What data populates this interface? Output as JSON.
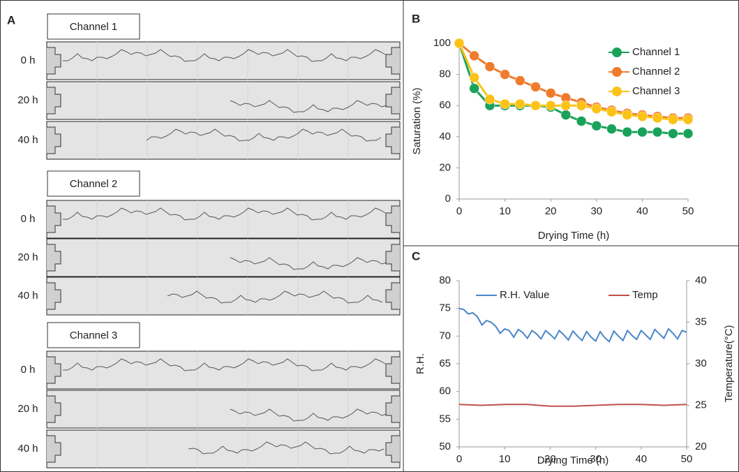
{
  "panel_a": {
    "label": "A",
    "channels": [
      {
        "title": "Channel 1",
        "rows": [
          "0 h",
          "20 h",
          "40 h"
        ]
      },
      {
        "title": "Channel 2",
        "rows": [
          "0 h",
          "20 h",
          "40 h"
        ]
      },
      {
        "title": "Channel 3",
        "rows": [
          "0 h",
          "20 h",
          "40 h"
        ]
      }
    ]
  },
  "chart_data": [
    {
      "type": "line",
      "panel_label": "B",
      "markers": true,
      "x_label": "Drying Time (h)",
      "y_label": "Saturation (%)",
      "x": [
        0,
        3.3,
        6.7,
        10,
        13.3,
        16.7,
        20,
        23.3,
        26.7,
        30,
        33.3,
        36.7,
        40,
        43.3,
        46.7,
        50
      ],
      "series": [
        {
          "name": "Channel 1",
          "color": "#1aa15a",
          "values": [
            100,
            71,
            60,
            60,
            60,
            60,
            59,
            54,
            50,
            47,
            45,
            43,
            43,
            43,
            42,
            42
          ]
        },
        {
          "name": "Channel 2",
          "color": "#ef7b2c",
          "values": [
            100,
            92,
            85,
            80,
            76,
            72,
            68,
            65,
            62,
            59,
            57,
            55,
            54,
            53,
            52,
            52
          ]
        },
        {
          "name": "Channel 3",
          "color": "#fbc217",
          "values": [
            100,
            78,
            64,
            61,
            61,
            60,
            60,
            60,
            60,
            58,
            56,
            54,
            53,
            52,
            51,
            51
          ]
        }
      ],
      "xlim": [
        0,
        50
      ],
      "xticks": [
        0,
        10,
        20,
        30,
        40,
        50
      ],
      "ylim": [
        0,
        100
      ],
      "yticks": [
        0,
        20,
        40,
        60,
        80,
        100
      ]
    },
    {
      "type": "line",
      "panel_label": "C",
      "markers": false,
      "x_label": "Drying Time (h)",
      "y_label": "R.H.",
      "y2_label": "Temperature(°C)",
      "series": [
        {
          "name": "R.H. Value",
          "color": "#4a86c8",
          "x": [
            0,
            1,
            2,
            3,
            4,
            5,
            6,
            7,
            8,
            9,
            10,
            11,
            12,
            13,
            14,
            15,
            16,
            17,
            18,
            19,
            20,
            21,
            22,
            23,
            24,
            25,
            26,
            27,
            28,
            29,
            30,
            31,
            32,
            33,
            34,
            35,
            36,
            37,
            38,
            39,
            40,
            41,
            42,
            43,
            44,
            45,
            46,
            47,
            48,
            49,
            50
          ],
          "values": [
            75,
            74.8,
            74,
            74.2,
            73.5,
            72,
            72.8,
            72.5,
            71.8,
            70.5,
            71.3,
            71,
            69.8,
            71.2,
            70.6,
            69.6,
            71,
            70.4,
            69.5,
            71,
            70.3,
            69.5,
            71,
            70.2,
            69.3,
            70.9,
            70,
            69.2,
            70.8,
            69.8,
            69.1,
            70.8,
            69.7,
            69,
            70.9,
            70,
            69.2,
            71,
            70.1,
            69.4,
            71,
            70.2,
            69.4,
            71.2,
            70.4,
            69.6,
            71.3,
            70.5,
            69.5,
            71,
            70.7
          ]
        },
        {
          "name": "Temp",
          "color": "#c0504d",
          "axis": "y2",
          "x": [
            0,
            5,
            10,
            15,
            20,
            25,
            30,
            35,
            40,
            45,
            50
          ],
          "values": [
            25.1,
            25,
            25.1,
            25.1,
            24.9,
            24.9,
            25,
            25.1,
            25.1,
            25,
            25.1
          ]
        }
      ],
      "xlim": [
        0,
        50
      ],
      "xticks": [
        0,
        10,
        20,
        30,
        40,
        50
      ],
      "ylim": [
        50,
        80
      ],
      "yticks": [
        50,
        55,
        60,
        65,
        70,
        75,
        80
      ],
      "y2lim": [
        20,
        40
      ],
      "y2ticks": [
        20,
        25,
        30,
        35,
        40
      ]
    }
  ]
}
